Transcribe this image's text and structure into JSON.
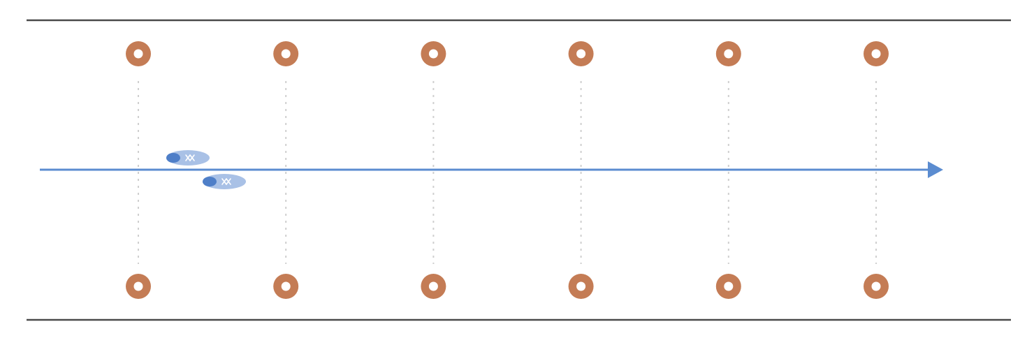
{
  "colors": {
    "background": "#ffffff",
    "border_line": "#4a4a4a",
    "marker_ring": "#c47c55",
    "marker_center": "#ffffff",
    "guide_line": "#cfcfcf",
    "arrow": "#5b8cd0",
    "shoe_body": "#a9c1e6",
    "shoe_toe": "#4f7fc8",
    "shoe_laces": "#ffffff"
  },
  "icons": {
    "marker": "cone-marker-icon",
    "shoe": "shoe-footprint-icon",
    "arrow": "direction-arrow-icon"
  },
  "diagram": {
    "marker_columns": 6,
    "marker_rows": [
      "top",
      "bottom"
    ],
    "shoes": [
      "left-shoe",
      "right-shoe"
    ],
    "direction": "left-to-right"
  }
}
